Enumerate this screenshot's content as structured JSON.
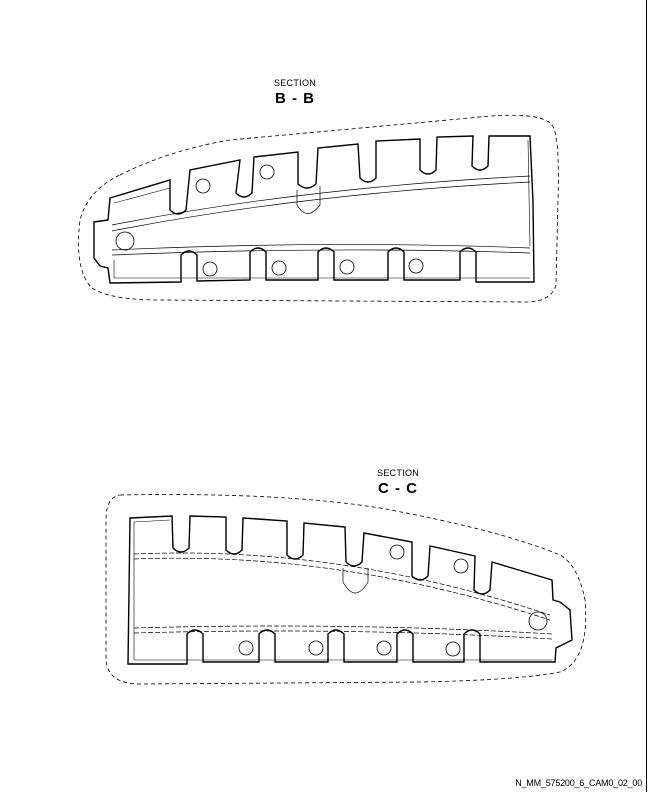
{
  "section_bb": {
    "caption": "SECTION",
    "name": "B - B"
  },
  "section_cc": {
    "caption": "SECTION",
    "name": "C - C"
  },
  "drawing_ref": "N_MM_575200_6_CAM0_02_00"
}
